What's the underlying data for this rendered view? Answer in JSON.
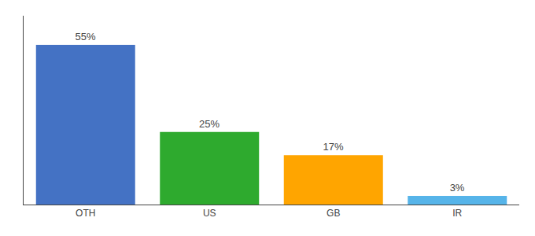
{
  "chart_data": {
    "type": "bar",
    "categories": [
      "OTH",
      "US",
      "GB",
      "IR"
    ],
    "values": [
      55,
      25,
      17,
      3
    ],
    "value_labels": [
      "55%",
      "25%",
      "17%",
      "3%"
    ],
    "colors": [
      "#4472C4",
      "#2EAA2E",
      "#FFA500",
      "#56B4E9"
    ],
    "ylim": [
      0,
      65
    ],
    "data_labels": true,
    "tick_labels": "x",
    "grid": false
  }
}
